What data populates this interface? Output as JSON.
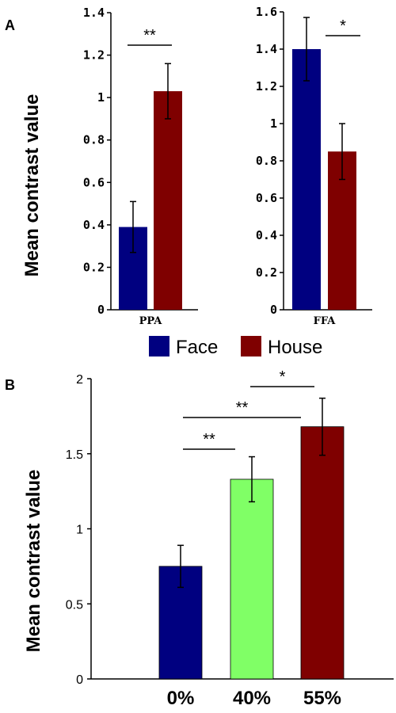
{
  "panels": {
    "a_label": "A",
    "b_label": "B"
  },
  "legend": {
    "face_label": "Face",
    "house_label": "House",
    "face_color": "#000080",
    "house_color": "#7f0000"
  },
  "chart_data": [
    {
      "type": "bar",
      "panel": "A",
      "categories": [
        "PPA"
      ],
      "series": [
        {
          "name": "Face",
          "values": [
            0.39
          ],
          "errors": [
            0.12
          ]
        },
        {
          "name": "House",
          "values": [
            1.03
          ],
          "errors": [
            0.13
          ]
        }
      ],
      "ylabel": "Mean contrast value",
      "ylim": [
        0,
        1.4
      ],
      "yticks": [
        0,
        0.2,
        0.4,
        0.6,
        0.8,
        1,
        1.2,
        1.4
      ],
      "ytick_labels": [
        "0",
        "0.2",
        "0.4",
        "0.6",
        "0.8",
        "1",
        "1.2",
        "1.4"
      ],
      "significance": [
        {
          "between": [
            "Face",
            "House"
          ],
          "label": "**"
        }
      ]
    },
    {
      "type": "bar",
      "panel": "A",
      "categories": [
        "FFA"
      ],
      "series": [
        {
          "name": "Face",
          "values": [
            1.4
          ],
          "errors": [
            0.17
          ]
        },
        {
          "name": "House",
          "values": [
            0.85
          ],
          "errors": [
            0.15
          ]
        }
      ],
      "ylim": [
        0,
        1.6
      ],
      "yticks": [
        0,
        0.2,
        0.4,
        0.6,
        0.8,
        1,
        1.2,
        1.4,
        1.6
      ],
      "ytick_labels": [
        "0",
        "0.2",
        "0.4",
        "0.6",
        "0.8",
        "1",
        "1.2",
        "1.4",
        "1.6"
      ],
      "significance": [
        {
          "between": [
            "Face",
            "House"
          ],
          "label": "*"
        }
      ]
    },
    {
      "type": "bar",
      "panel": "B",
      "categories": [
        "0%",
        "40%",
        "55%"
      ],
      "values": [
        0.75,
        1.33,
        1.68
      ],
      "errors": [
        0.14,
        0.15,
        0.19
      ],
      "colors": [
        "#000080",
        "#80ff66",
        "#7f0000"
      ],
      "ylabel": "Mean contrast value",
      "ylim": [
        0,
        2
      ],
      "yticks": [
        0,
        0.5,
        1,
        1.5,
        2
      ],
      "ytick_labels": [
        "0",
        "0.5",
        "1",
        "1.5",
        "2"
      ],
      "significance": [
        {
          "between": [
            "0%",
            "40%"
          ],
          "label": "**"
        },
        {
          "between": [
            "0%",
            "55%"
          ],
          "label": "**"
        },
        {
          "between": [
            "40%",
            "55%"
          ],
          "label": "*"
        }
      ]
    }
  ]
}
